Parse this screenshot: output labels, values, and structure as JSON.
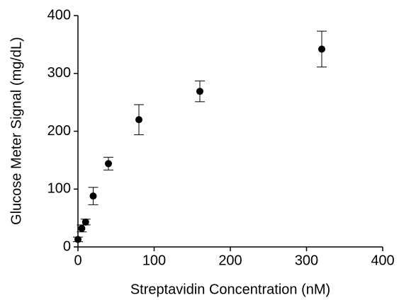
{
  "chart_data": {
    "type": "scatter",
    "x_label": "Streptavidin Concentration (nM)",
    "y_label": "Glucose Meter Signal (mg/dL)",
    "x": [
      0,
      5,
      10,
      20,
      40,
      80,
      160,
      320
    ],
    "values": [
      13,
      32,
      43,
      88,
      144,
      220,
      269,
      342
    ],
    "errors": [
      4,
      6,
      5,
      15,
      11,
      26,
      18,
      31
    ],
    "color": "#000000",
    "xlim": [
      0,
      400
    ],
    "xticks": [
      0,
      100,
      200,
      300,
      400
    ],
    "ylim": [
      0,
      400
    ],
    "yticks": [
      0,
      100,
      200,
      300,
      400
    ]
  }
}
